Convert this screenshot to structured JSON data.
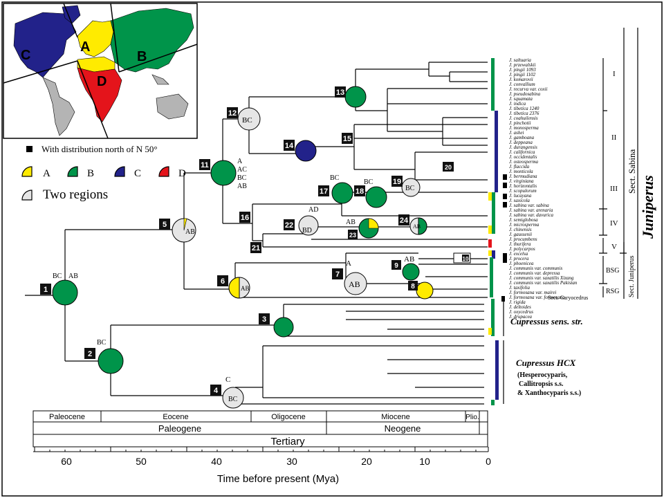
{
  "legend": {
    "north_label": "With distribution north of N 50°",
    "regions": [
      {
        "key": "A",
        "label": "A",
        "color": "#ffeb00"
      },
      {
        "key": "B",
        "label": "B",
        "color": "#00944a"
      },
      {
        "key": "C",
        "label": "C",
        "color": "#22228a"
      },
      {
        "key": "D",
        "label": "D",
        "color": "#e4141b"
      }
    ],
    "two_regions_label": "Two regions",
    "two_regions_color": "#e6e6e6"
  },
  "map": {
    "labels": [
      "C",
      "A",
      "B",
      "D"
    ]
  },
  "timescale": {
    "epochs": [
      "Paleocene",
      "Eocene",
      "Oligocene",
      "Miocene",
      "Plio."
    ],
    "periods": [
      "Paleogene",
      "Neogene"
    ],
    "era": "Tertiary",
    "ticks": [
      "60",
      "50",
      "40",
      "30",
      "20",
      "10",
      "0"
    ],
    "xlabel": "Time before present (Mya)"
  },
  "nodes": [
    {
      "id": "1",
      "label": "1"
    },
    {
      "id": "2",
      "label": "2"
    },
    {
      "id": "3",
      "label": "3"
    },
    {
      "id": "4",
      "label": "4"
    },
    {
      "id": "5",
      "label": "5"
    },
    {
      "id": "6",
      "label": "6"
    },
    {
      "id": "7",
      "label": "7"
    },
    {
      "id": "8",
      "label": "8"
    },
    {
      "id": "9",
      "label": "9"
    },
    {
      "id": "10",
      "label": "10"
    },
    {
      "id": "11",
      "label": "11"
    },
    {
      "id": "12",
      "label": "12"
    },
    {
      "id": "13",
      "label": "13"
    },
    {
      "id": "14",
      "label": "14"
    },
    {
      "id": "15",
      "label": "15"
    },
    {
      "id": "16",
      "label": "16"
    },
    {
      "id": "17",
      "label": "17"
    },
    {
      "id": "18",
      "label": "18"
    },
    {
      "id": "19",
      "label": "19"
    },
    {
      "id": "20",
      "label": "20"
    },
    {
      "id": "21",
      "label": "21"
    },
    {
      "id": "22",
      "label": "22"
    },
    {
      "id": "23",
      "label": "23"
    },
    {
      "id": "24",
      "label": "24"
    }
  ],
  "pie_texts": {
    "n1a": "BC",
    "n1b": "AB",
    "n2": "BC",
    "n4a": "C",
    "n4b": "BC",
    "n5": "AB",
    "n6": "AB",
    "n7a": "A",
    "n7b": "AB",
    "n9": "AB",
    "n11a": "A",
    "n11b": "AC",
    "n11c": "BC",
    "n11d": "AB",
    "n12": "BC",
    "n17": "BC",
    "n18": "BC",
    "n19": "BC",
    "n22a": "AD",
    "n22b": "BD",
    "n23": "AB",
    "n24": "AB"
  },
  "taxa": [
    "J. saltuaria",
    "J. przewalskii",
    "J. pingii 1093",
    "J. pingii 1102",
    "J. komarovii",
    "J. convallium",
    "J. recurva var. coxii",
    "J. pseudosabina",
    "J. squamata",
    "J. indica",
    "J. tibetica 1240",
    "J. tibetica 2376",
    "J. coahuilensis",
    "J. pinchotii",
    "J. monosperma",
    "J. ashei",
    "J. gamboana",
    "J. deppeana",
    "J. durangensis",
    "J. californica",
    "J. occidentalis",
    "J. osteosperma",
    "J. flaccida",
    "J. monticola",
    "J. bermudiana",
    "J. virginiana",
    "J. horizontalis",
    "J. scopulorum",
    "J. lucayana",
    "J. saxicola",
    "J. sabina var. sabina",
    "J. sabina var. arenaria",
    "J. sabina var. davurica",
    "J. semiglobosa",
    "J. microsperma",
    "J. chinensis",
    "J. gaussenii",
    "J. procumbens",
    "J. thurifera",
    "J. polycarpos",
    "J. excelsa",
    "J. procera",
    "J. phoenicea",
    "J. communis var. communis",
    "J. communis var. depressa",
    "J. communis var. saxatilis Xizang",
    "J. communis var. saxatilis Pakistan",
    "J. taxifolia",
    "J. formosana var. mairei",
    "J. formosana var. formosana",
    "J. rigida",
    "J. deltoides",
    "J. oxycedrus",
    "J. drupacea"
  ],
  "groups": {
    "I": "I",
    "II": "II",
    "III": "III",
    "IV": "IV",
    "V": "V",
    "BSG": "BSG",
    "RSG": "RSG"
  },
  "sections": {
    "sabina": "Sect. Sabina",
    "juniperus": "Sect. Juniperus",
    "caryocedrus": "Sect. Caryocedrus",
    "genus": "Juniperus"
  },
  "cupressus": {
    "str": "Cupressus sens. str.",
    "hcx": "Cupressus HCX",
    "hcx_detail_1": "(Hesperocyparis,",
    "hcx_detail_2": "Callitropsis s.s.",
    "hcx_detail_3": "& Xanthocyparis s.s.)"
  }
}
